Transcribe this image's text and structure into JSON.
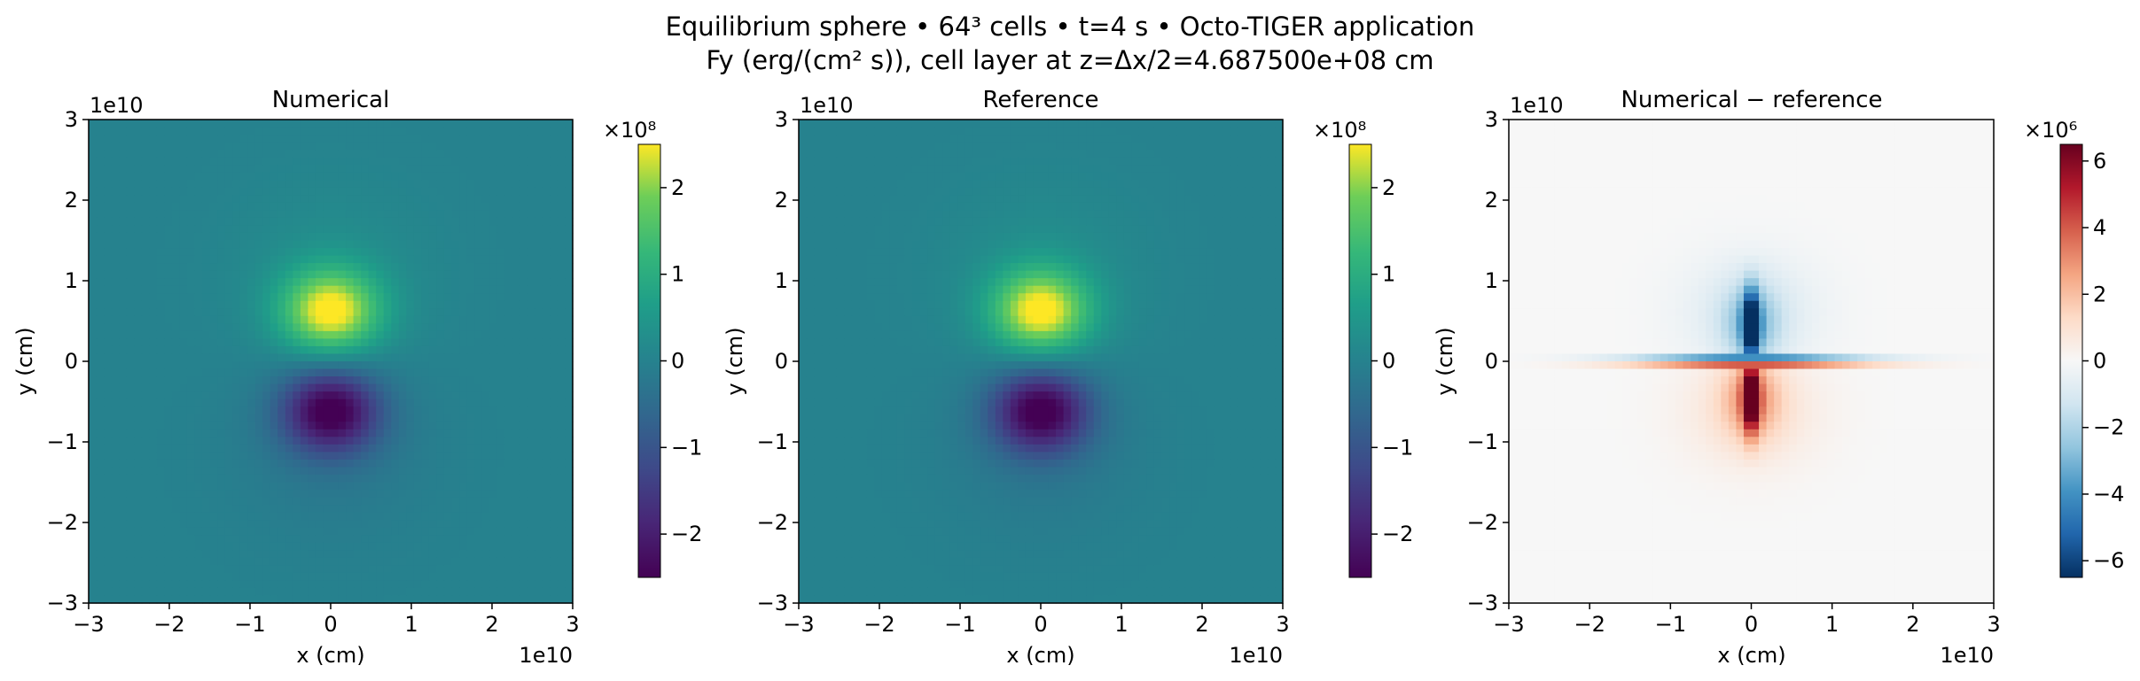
{
  "figure": {
    "title_line1": "Equilibrium sphere • 64³ cells • t=4 s • Octo-TIGER application",
    "title_line2": "Fy (erg/(cm² s)), cell layer at z=Δx/2=4.687500e+08 cm"
  },
  "chart_data": [
    {
      "type": "heatmap",
      "title": "Numerical",
      "xlabel": "x (cm)",
      "ylabel": "y (cm)",
      "xlim": [
        -30000000000.0,
        30000000000.0
      ],
      "ylim": [
        -30000000000.0,
        30000000000.0
      ],
      "x_ticks": [
        -3,
        -2,
        -1,
        0,
        1,
        2,
        3
      ],
      "y_ticks": [
        -3,
        -2,
        -1,
        0,
        1,
        2,
        3
      ],
      "x_tick_labels": [
        "−3",
        "−2",
        "−1",
        "0",
        "1",
        "2",
        "3"
      ],
      "y_tick_labels": [
        "−3",
        "−2",
        "−1",
        "0",
        "1",
        "2",
        "3"
      ],
      "x_offset_text": "1e10",
      "y_offset_text": "1e10",
      "grid": "64×64",
      "colormap": "viridis",
      "colorbar": {
        "range": [
          -250000000.0,
          250000000.0
        ],
        "ticks": [
          -2,
          -1,
          0,
          1,
          2
        ],
        "tick_labels": [
          "−2",
          "−1",
          "0",
          "1",
          "2"
        ],
        "scale_text": "×10⁸"
      },
      "field": {
        "description_values": "positive lobe max ≈ 2.5e8 near (0, 0.6e10); negative lobe min ≈ −2.5e8 near (0, −0.6e10); background ≈ 0"
      }
    },
    {
      "type": "heatmap",
      "title": "Reference",
      "xlabel": "x (cm)",
      "ylabel": "y (cm)",
      "xlim": [
        -30000000000.0,
        30000000000.0
      ],
      "ylim": [
        -30000000000.0,
        30000000000.0
      ],
      "x_ticks": [
        -3,
        -2,
        -1,
        0,
        1,
        2,
        3
      ],
      "y_ticks": [
        -3,
        -2,
        -1,
        0,
        1,
        2,
        3
      ],
      "x_tick_labels": [
        "−3",
        "−2",
        "−1",
        "0",
        "1",
        "2",
        "3"
      ],
      "y_tick_labels": [
        "−3",
        "−2",
        "−1",
        "0",
        "1",
        "2",
        "3"
      ],
      "x_offset_text": "1e10",
      "y_offset_text": "1e10",
      "grid": "64×64",
      "colormap": "viridis",
      "colorbar": {
        "range": [
          -250000000.0,
          250000000.0
        ],
        "ticks": [
          -2,
          -1,
          0,
          1,
          2
        ],
        "tick_labels": [
          "−2",
          "−1",
          "0",
          "1",
          "2"
        ],
        "scale_text": "×10⁸"
      },
      "field": {
        "description_values": "positive lobe max ≈ 2.5e8 near (0, 0.6e10); negative lobe min ≈ −2.5e8 near (0, −0.6e10); background ≈ 0"
      }
    },
    {
      "type": "heatmap",
      "title": "Numerical − reference",
      "xlabel": "x (cm)",
      "ylabel": "y (cm)",
      "xlim": [
        -30000000000.0,
        30000000000.0
      ],
      "ylim": [
        -30000000000.0,
        30000000000.0
      ],
      "x_ticks": [
        -3,
        -2,
        -1,
        0,
        1,
        2,
        3
      ],
      "y_ticks": [
        -3,
        -2,
        -1,
        0,
        1,
        2,
        3
      ],
      "x_tick_labels": [
        "−3",
        "−2",
        "−1",
        "0",
        "1",
        "2",
        "3"
      ],
      "y_tick_labels": [
        "−3",
        "−2",
        "−1",
        "0",
        "1",
        "2",
        "3"
      ],
      "x_offset_text": "1e10",
      "y_offset_text": "1e10",
      "grid": "64×64",
      "colormap": "RdBu_r",
      "colorbar": {
        "range": [
          -6500000.0,
          6500000.0
        ],
        "ticks": [
          -6,
          -4,
          -2,
          0,
          2,
          4,
          6
        ],
        "tick_labels": [
          "−6",
          "−4",
          "−2",
          "0",
          "2",
          "4",
          "6"
        ],
        "scale_text": "×10⁶"
      },
      "field": {
        "description_values": "negative column (min ≈ −6.5e6) along x=0 for 0<y<1.2e10; positive column (max ≈ 6.5e6) along x=0 for −1.2e10<y<0; thin horizontal band near y=0; near zero elsewhere"
      }
    }
  ]
}
